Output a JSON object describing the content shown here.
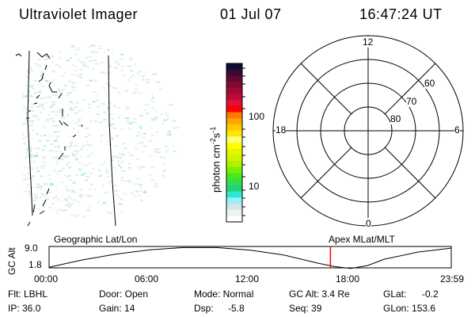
{
  "header": {
    "instrument": "Ultraviolet Imager",
    "date": "01 Jul 07",
    "time": "16:47:24 UT"
  },
  "image_panel": {
    "icon": "uv-auroral-image"
  },
  "colorbar": {
    "label": "photon cm⁻²s⁻¹",
    "label_base": "photon cm",
    "label_exp1": "-2",
    "label_mid": "s",
    "label_exp2": "-1",
    "ticks": [
      "100",
      "10"
    ],
    "colors_top_to_bottom": [
      "#0a0f33",
      "#3c0a2e",
      "#5e0a33",
      "#800a33",
      "#9e0a33",
      "#bf0a35",
      "#e0103a",
      "#ff0000",
      "#ff7a00",
      "#ffa500",
      "#ffc800",
      "#ffe600",
      "#ffff80",
      "#ffff00",
      "#e6f500",
      "#cdf500",
      "#b0f000",
      "#78f000",
      "#4ce61e",
      "#32dc50",
      "#23d278",
      "#2ee6d2",
      "#96f0f5",
      "#d2e6e6",
      "#e6f5ee",
      "#ffffff"
    ]
  },
  "polar": {
    "mlt_labels": {
      "top": "12",
      "bottom": "0",
      "left": "18",
      "right": "6"
    },
    "lat_labels": [
      "60",
      "70",
      "80"
    ]
  },
  "timeline": {
    "left_title": "Geographic Lat/Lon",
    "right_title": "Apex MLat/MLT",
    "ylabel": "GC Alt",
    "yticks": [
      "9.0",
      "1.8"
    ],
    "xticks": [
      "00:00",
      "06:00",
      "12:00",
      "18:00",
      "23:59"
    ],
    "current_time_hours": 16.79,
    "marker_color": "#ff0000",
    "orbit": {
      "hours": [
        0,
        2,
        4,
        6,
        8,
        10,
        12,
        14,
        16,
        17,
        18,
        19,
        20,
        22,
        23.98
      ],
      "gc_alt": [
        2.0,
        4.6,
        6.6,
        8.1,
        8.9,
        8.9,
        8.0,
        6.3,
        3.5,
        2.3,
        1.6,
        2.6,
        4.8,
        7.3,
        8.7
      ]
    }
  },
  "status": {
    "flt": "Flt: LBHL",
    "ip": "IP: 36.0",
    "door": "Door: Open",
    "gain": "Gain: 14",
    "mode": "Mode: Normal",
    "dsp_label": "Dsp:",
    "dsp_value": "-5.8",
    "gcalt": "GC Alt: 3.4 Re",
    "seq": "Seq: 39",
    "glat_label": "GLat:",
    "glat_value": "-0.2",
    "glon": "GLon: 153.6"
  }
}
